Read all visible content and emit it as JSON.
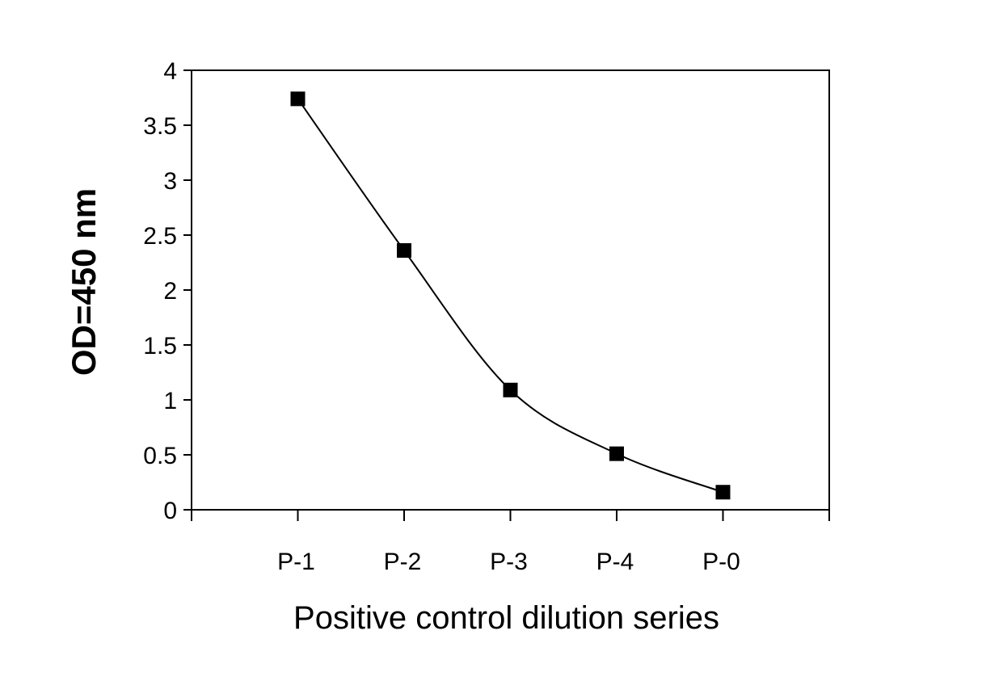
{
  "chart_data": {
    "type": "line",
    "title": "",
    "xlabel": "Positive control dilution series",
    "ylabel": "OD=450 nm",
    "categories": [
      "P-1",
      "P-2",
      "P-3",
      "P-4",
      "P-0"
    ],
    "series": [
      {
        "values": [
          3.74,
          2.36,
          1.09,
          0.51,
          0.16
        ]
      }
    ],
    "ylim": [
      0,
      4
    ],
    "yticks": [
      "0",
      "0.5",
      "1",
      "1.5",
      "2",
      "2.5",
      "3",
      "3.5",
      "4"
    ],
    "grid": false,
    "legend": "none",
    "marker": "square",
    "colors": {
      "line": "#000000",
      "marker": "#000000",
      "axis": "#000000"
    }
  }
}
